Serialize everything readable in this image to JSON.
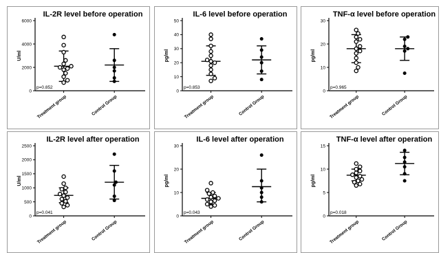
{
  "chart_data": [
    {
      "type": "scatter",
      "title": "IL-2R level before operation",
      "ylabel": "U/ml",
      "ylim": [
        0,
        6000
      ],
      "yticks": [
        0,
        2000,
        4000,
        6000
      ],
      "categories": [
        "Treatment group",
        "Control Group"
      ],
      "p_value": "p=0.852",
      "series": [
        {
          "values": [
            4600,
            3900,
            3300,
            2600,
            2300,
            2100,
            2000,
            1900,
            1800,
            1500,
            1200,
            900,
            700
          ],
          "mean": 2100,
          "sd_low": 800,
          "sd_high": 3400,
          "marker": "open"
        },
        {
          "values": [
            4800,
            2600,
            2000,
            1700,
            1100,
            800
          ],
          "mean": 2200,
          "sd_low": 800,
          "sd_high": 3600,
          "marker": "filled"
        }
      ]
    },
    {
      "type": "scatter",
      "title": "IL-6 level before operation",
      "ylabel": "pg/ml",
      "ylim": [
        0,
        50
      ],
      "yticks": [
        0,
        10,
        20,
        30,
        40,
        50
      ],
      "categories": [
        "Treatment group",
        "Control Group"
      ],
      "p_value": "p=0.853",
      "series": [
        {
          "values": [
            40,
            37,
            32,
            28,
            25,
            22,
            21,
            20,
            18,
            15,
            12,
            9,
            7
          ],
          "mean": 21,
          "sd_low": 11,
          "sd_high": 32,
          "marker": "open"
        },
        {
          "values": [
            37,
            29,
            24,
            20,
            14,
            8
          ],
          "mean": 22,
          "sd_low": 12,
          "sd_high": 32,
          "marker": "filled"
        }
      ]
    },
    {
      "type": "scatter",
      "title": "TNF-α level before operation",
      "ylabel": "pg/ml",
      "ylim": [
        0,
        30
      ],
      "yticks": [
        0,
        10,
        20,
        30
      ],
      "categories": [
        "Treatment group",
        "Control Group"
      ],
      "p_value": "p=0.965",
      "series": [
        {
          "values": [
            26,
            24.5,
            23,
            22,
            21,
            19,
            18,
            17,
            16,
            14,
            12,
            10,
            8.5
          ],
          "mean": 18,
          "sd_low": 12,
          "sd_high": 24,
          "marker": "open"
        },
        {
          "values": [
            23,
            22,
            19,
            18,
            17,
            7.5
          ],
          "mean": 18,
          "sd_low": 13,
          "sd_high": 23,
          "marker": "filled"
        }
      ]
    },
    {
      "type": "scatter",
      "title": "IL-2R level after operation",
      "ylabel": "U/ml",
      "ylim": [
        0,
        2500
      ],
      "yticks": [
        0,
        500,
        1000,
        1500,
        2000,
        2500
      ],
      "categories": [
        "Treatment group",
        "Control Group"
      ],
      "p_value": "p=0.041",
      "series": [
        {
          "values": [
            1400,
            1150,
            1000,
            950,
            850,
            780,
            720,
            650,
            600,
            520,
            450,
            380,
            320
          ],
          "mean": 730,
          "sd_low": 470,
          "sd_high": 1000,
          "marker": "open"
        },
        {
          "values": [
            2200,
            1600,
            1200,
            1100,
            700,
            550
          ],
          "mean": 1200,
          "sd_low": 600,
          "sd_high": 1800,
          "marker": "filled"
        }
      ]
    },
    {
      "type": "scatter",
      "title": "IL-6 level after operation",
      "ylabel": "pg/ml",
      "ylim": [
        0,
        30
      ],
      "yticks": [
        0,
        10,
        20,
        30
      ],
      "categories": [
        "Treatment group",
        "Control Group"
      ],
      "p_value": "p=0.043",
      "series": [
        {
          "values": [
            14,
            11,
            10,
            9.5,
            8.5,
            8,
            7.5,
            7,
            6.5,
            6,
            5,
            4.5,
            4
          ],
          "mean": 7.5,
          "sd_low": 5,
          "sd_high": 10,
          "marker": "open"
        },
        {
          "values": [
            26,
            15,
            12,
            10,
            8,
            6
          ],
          "mean": 12.5,
          "sd_low": 6,
          "sd_high": 20,
          "marker": "filled"
        }
      ]
    },
    {
      "type": "scatter",
      "title": "TNF-α level after operation",
      "ylabel": "pg/ml",
      "ylim": [
        0,
        15
      ],
      "yticks": [
        0,
        5,
        10,
        15
      ],
      "categories": [
        "Treatment group",
        "Control Group"
      ],
      "p_value": "p=0.018",
      "series": [
        {
          "values": [
            11.2,
            10.5,
            10,
            9.6,
            9.2,
            8.8,
            8.5,
            8.2,
            7.8,
            7.5,
            7.2,
            6.8,
            6.5
          ],
          "mean": 8.7,
          "sd_low": 7.5,
          "sd_high": 10,
          "marker": "open"
        },
        {
          "values": [
            14,
            12.5,
            11.5,
            10.5,
            9,
            7.5
          ],
          "mean": 11.2,
          "sd_low": 8.8,
          "sd_high": 13.6,
          "marker": "filled"
        }
      ]
    }
  ]
}
